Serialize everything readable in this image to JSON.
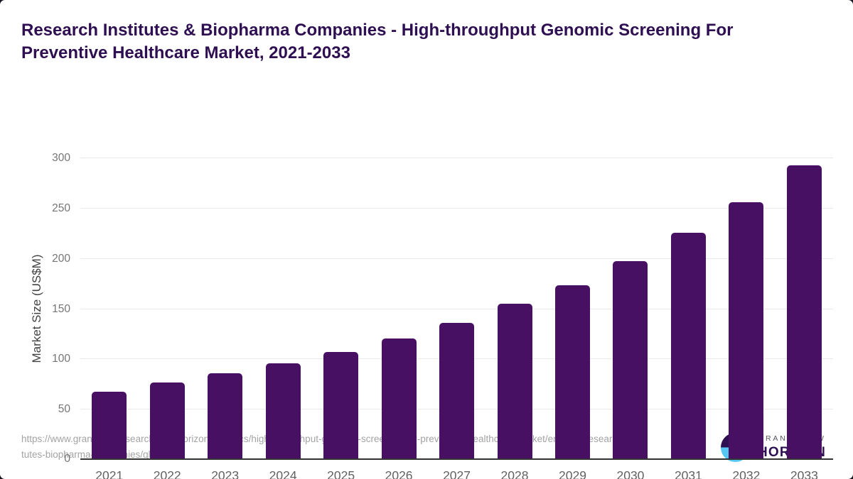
{
  "title": "Research Institutes & Biopharma Companies - High-throughput Genomic Screening For Preventive Healthcare Market, 2021-2033",
  "chart_data": {
    "type": "bar",
    "title": "Research Institutes & Biopharma Companies - High-throughput Genomic Screening For Preventive Healthcare Market, 2021-2033",
    "xlabel": "",
    "ylabel": "Market Size (US$M)",
    "categories": [
      "2021",
      "2022",
      "2023",
      "2024",
      "2025",
      "2026",
      "2027",
      "2028",
      "2029",
      "2030",
      "2031",
      "2032",
      "2033"
    ],
    "values": [
      68,
      77,
      86,
      96,
      107,
      121,
      136,
      155,
      174,
      198,
      226,
      256,
      293
    ],
    "ylim": [
      0,
      300
    ],
    "yticks": [
      0,
      50,
      100,
      150,
      200,
      250,
      300
    ],
    "grid": "horizontal",
    "legend": "none",
    "bar_color": "#481063"
  },
  "colors": {
    "bar": "#481063",
    "title_text": "#2e0f51",
    "axis_line": "#333333",
    "gridline": "#e9e9e9",
    "tick_label": "#757575",
    "logo_purple": "#2e0f51",
    "logo_blue": "#56c7f3"
  },
  "footer": {
    "source_url": "https://www.grandviewresearch.com/horizon/statistics/high-throughput-genomic-screening-for-preventive-healthcare-market/end-use/research-institutes-biopharma-companies/global",
    "logo": {
      "icon": "sun-over-horizon",
      "brand_top": "GRAND VIEW",
      "brand_bottom": "HORIZON"
    }
  }
}
